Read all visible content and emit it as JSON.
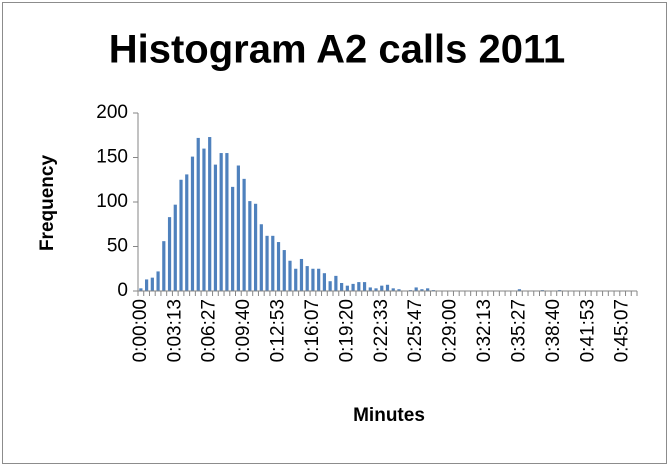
{
  "chart_data": {
    "type": "bar",
    "title": "Histogram A2 calls 2011",
    "x_label": "Minutes",
    "y_label": "Frequency",
    "categories": [
      "0:00:00",
      null,
      null,
      null,
      null,
      null,
      "0:03:13",
      null,
      null,
      null,
      null,
      null,
      "0:06:27",
      null,
      null,
      null,
      null,
      null,
      "0:09:40",
      null,
      null,
      null,
      null,
      null,
      "0:12:53",
      null,
      null,
      null,
      null,
      null,
      "0:16:07",
      null,
      null,
      null,
      null,
      null,
      "0:19:20",
      null,
      null,
      null,
      null,
      null,
      "0:22:33",
      null,
      null,
      null,
      null,
      null,
      "0:25:47",
      null,
      null,
      null,
      null,
      null,
      "0:29:00",
      null,
      null,
      null,
      null,
      null,
      "0:32:13",
      null,
      null,
      null,
      null,
      null,
      "0:35:27",
      null,
      null,
      null,
      null,
      null,
      "0:38:40",
      null,
      null,
      null,
      null,
      null,
      "0:41:53",
      null,
      null,
      null,
      null,
      null,
      "0:45:07",
      null,
      null
    ],
    "values": [
      3,
      13,
      15,
      22,
      56,
      83,
      97,
      125,
      131,
      151,
      172,
      160,
      173,
      142,
      155,
      155,
      117,
      141,
      126,
      101,
      98,
      75,
      62,
      62,
      55,
      46,
      34,
      25,
      36,
      28,
      25,
      25,
      20,
      11,
      17,
      9,
      6,
      8,
      10,
      10,
      4,
      3,
      6,
      7,
      3,
      2,
      0,
      1,
      4,
      2,
      3,
      1,
      0,
      0,
      0,
      0,
      0,
      0,
      0,
      0,
      0,
      0,
      0,
      0,
      0,
      0,
      2,
      0,
      0,
      0,
      1,
      0,
      0,
      1,
      0,
      0,
      0,
      0,
      0,
      0,
      0,
      0,
      0,
      0,
      0,
      0,
      0
    ],
    "color": "#4f81bd",
    "ylim": [
      0,
      200
    ],
    "yticks": [
      0,
      50,
      100,
      150,
      200
    ],
    "grid": false
  }
}
